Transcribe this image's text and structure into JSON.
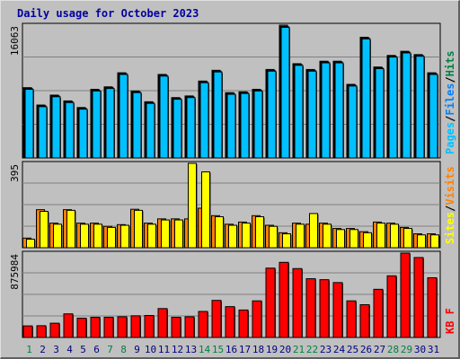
{
  "chart_data": {
    "type": "bar",
    "title": "Daily usage for October 2023",
    "categories": [
      "1",
      "2",
      "3",
      "4",
      "5",
      "6",
      "7",
      "8",
      "9",
      "10",
      "11",
      "12",
      "13",
      "14",
      "15",
      "16",
      "17",
      "18",
      "19",
      "20",
      "21",
      "22",
      "23",
      "24",
      "25",
      "26",
      "27",
      "28",
      "29",
      "30",
      "31"
    ],
    "weekend_days": [
      1,
      7,
      8,
      14,
      15,
      21,
      22,
      28,
      29
    ],
    "colors": {
      "pages": "#00c0ff",
      "files": "#0080ff",
      "hits": "#008040",
      "visits": "#ff8000",
      "sites": "#ffff00",
      "kbytes": "#ff0000",
      "weekday_label": "#000080",
      "weekend_label": "#008040",
      "title": "#0000a0"
    },
    "panels": [
      {
        "id": "hits",
        "ymax_label": "16063",
        "ylim": [
          0,
          16063
        ],
        "legend": [
          "Pages",
          "/",
          "Files",
          "/",
          "Hits"
        ],
        "series": [
          {
            "name": "Hits",
            "values": [
              8500,
              6400,
              7600,
              6900,
              6100,
              8300,
              8600,
              10300,
              8100,
              6800,
              10100,
              7300,
              7500,
              9300,
              10600,
              7900,
              8000,
              8300,
              10700,
              16063,
              11400,
              10700,
              11700,
              11700,
              8900,
              14600,
              11000,
              12400,
              12900,
              12500,
              10300
            ]
          },
          {
            "name": "Files",
            "values": [
              8400,
              6300,
              7500,
              6800,
              6000,
              8200,
              8500,
              10200,
              8000,
              6700,
              10000,
              7200,
              7400,
              9200,
              10500,
              7800,
              7900,
              8200,
              10600,
              15900,
              11300,
              10600,
              11600,
              11600,
              8800,
              14500,
              10900,
              12300,
              12800,
              12400,
              10200
            ]
          },
          {
            "name": "Pages",
            "values": [
              8300,
              6200,
              7400,
              6700,
              5900,
              8100,
              8400,
              10100,
              7900,
              6600,
              9900,
              7100,
              7300,
              9100,
              10400,
              7700,
              7800,
              8100,
              10500,
              15800,
              11200,
              10500,
              11500,
              11500,
              8700,
              14400,
              10800,
              12200,
              12700,
              12300,
              10100
            ]
          }
        ]
      },
      {
        "id": "visits",
        "ymax_label": "395",
        "ylim": [
          0,
          395
        ],
        "legend": [
          "Sites",
          "/",
          "Visits"
        ],
        "series": [
          {
            "name": "Visits",
            "values": [
              45,
              178,
              115,
              178,
              115,
              115,
              100,
              108,
              180,
              115,
              135,
              135,
              135,
              185,
              150,
              110,
              120,
              150,
              105,
              70,
              115,
              110,
              115,
              90,
              90,
              75,
              120,
              115,
              95,
              65,
              65
            ]
          },
          {
            "name": "Sites",
            "values": [
              40,
              170,
              110,
              175,
              110,
              110,
              95,
              105,
              175,
              110,
              130,
              130,
              395,
              355,
              145,
              105,
              115,
              145,
              100,
              65,
              110,
              160,
              110,
              85,
              85,
              70,
              115,
              110,
              90,
              60,
              60
            ]
          }
        ]
      },
      {
        "id": "kbytes",
        "ymax_label": "875984",
        "ylim": [
          0,
          875984
        ],
        "legend": [
          "KB",
          "F"
        ],
        "series": [
          {
            "name": "KBytes",
            "values": [
              120000,
              122000,
              148000,
              245000,
              200000,
              210000,
              210000,
              215000,
              225000,
              228000,
              300000,
              210000,
              215000,
              270000,
              385000,
              320000,
              285000,
              380000,
              720000,
              780000,
              715000,
              610000,
              600000,
              570000,
              380000,
              340000,
              500000,
              640000,
              875984,
              830000,
              620000
            ]
          }
        ]
      }
    ]
  }
}
